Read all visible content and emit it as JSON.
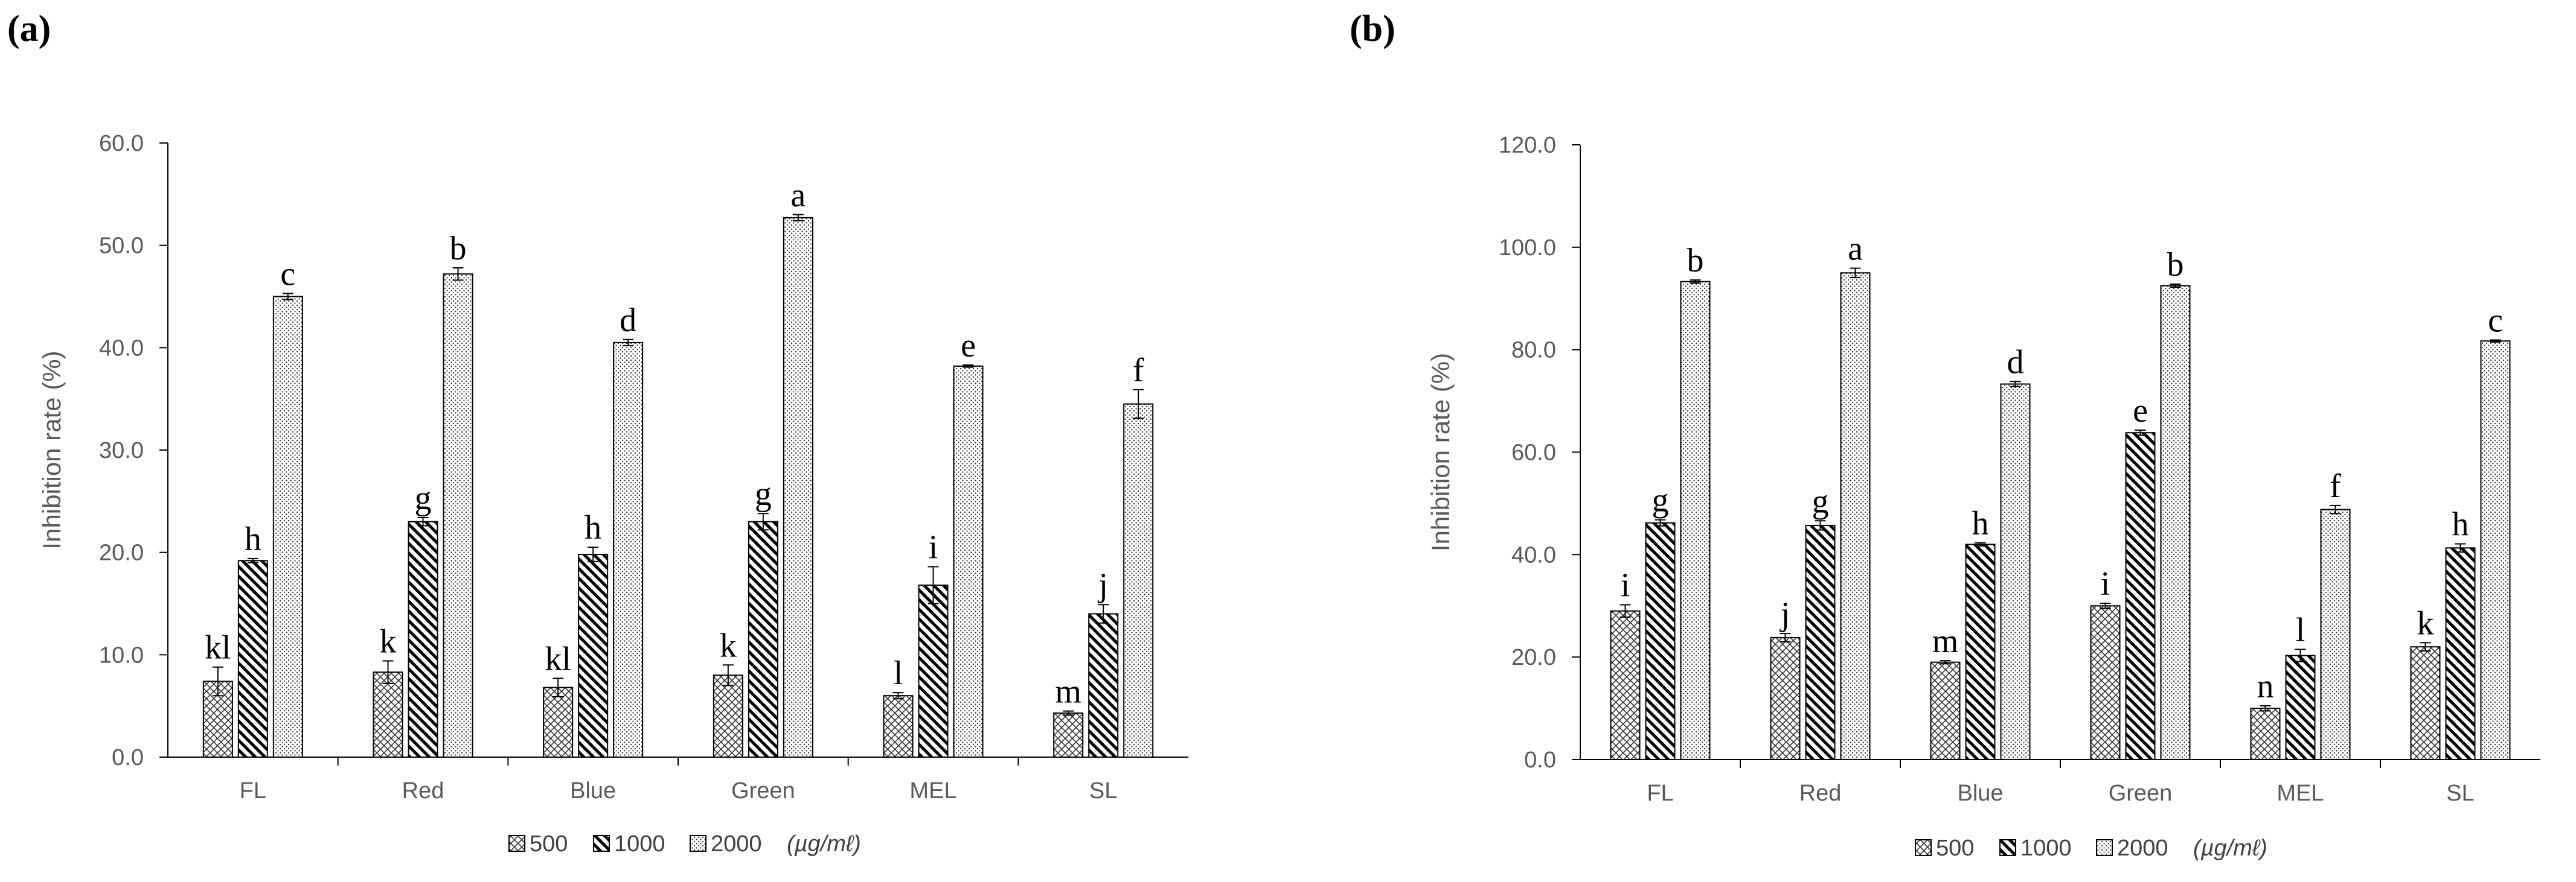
{
  "chart_data": [
    {
      "type": "bar",
      "panel_label": "(a)",
      "title": "",
      "xlabel": "",
      "ylabel": "Inhibition rate (%)",
      "ylim": [
        0,
        60
      ],
      "yticks": [
        "0.0",
        "10.0",
        "20.0",
        "30.0",
        "40.0",
        "50.0",
        "60.0"
      ],
      "categories": [
        "FL",
        "Red",
        "Blue",
        "Green",
        "MEL",
        "SL"
      ],
      "series": [
        {
          "name": "500",
          "pattern": "crosshatch",
          "values": [
            7.4,
            8.3,
            6.8,
            8.0,
            6.0,
            4.3
          ],
          "errors": [
            1.4,
            1.1,
            0.9,
            1.0,
            0.3,
            0.2
          ],
          "letters": [
            "kl",
            "k",
            "kl",
            "k",
            "l",
            "m"
          ]
        },
        {
          "name": "1000",
          "pattern": "diagonal",
          "values": [
            19.2,
            23.0,
            19.8,
            23.0,
            16.8,
            14.0
          ],
          "errors": [
            0.2,
            0.4,
            0.7,
            0.8,
            1.8,
            0.9
          ],
          "letters": [
            "h",
            "g",
            "h",
            "g",
            "i",
            "j"
          ]
        },
        {
          "name": "2000",
          "pattern": "dots",
          "values": [
            45.0,
            47.2,
            40.5,
            52.7,
            38.2,
            34.5
          ],
          "errors": [
            0.3,
            0.6,
            0.3,
            0.3,
            0.1,
            1.4
          ],
          "letters": [
            "c",
            "b",
            "d",
            "a",
            "e",
            "f"
          ]
        }
      ],
      "legend_unit": "(µg/mℓ)",
      "legend_position": "bottom-center",
      "grid": false
    },
    {
      "type": "bar",
      "panel_label": "(b)",
      "title": "",
      "xlabel": "",
      "ylabel": "Inhibition rate (%)",
      "ylim": [
        0,
        120
      ],
      "yticks": [
        "0.0",
        "20.0",
        "40.0",
        "60.0",
        "80.0",
        "100.0",
        "120.0"
      ],
      "categories": [
        "FL",
        "Red",
        "Blue",
        "Green",
        "MEL",
        "SL"
      ],
      "series": [
        {
          "name": "500",
          "pattern": "crosshatch",
          "values": [
            29.0,
            23.8,
            19.0,
            30.0,
            10.0,
            22.0
          ],
          "errors": [
            1.2,
            0.8,
            0.3,
            0.5,
            0.5,
            0.8
          ],
          "letters": [
            "i",
            "j",
            "m",
            "i",
            "n",
            "k"
          ]
        },
        {
          "name": "1000",
          "pattern": "diagonal",
          "values": [
            46.2,
            45.7,
            42.0,
            63.8,
            20.3,
            41.3
          ],
          "errors": [
            0.6,
            0.9,
            0.3,
            0.5,
            1.2,
            0.8
          ],
          "letters": [
            "g",
            "g",
            "h",
            "e",
            "l",
            "h"
          ]
        },
        {
          "name": "2000",
          "pattern": "dots",
          "values": [
            93.3,
            95.0,
            73.3,
            92.5,
            48.8,
            81.7
          ],
          "errors": [
            0.3,
            0.9,
            0.5,
            0.3,
            0.8,
            0.2
          ],
          "letters": [
            "b",
            "a",
            "d",
            "b",
            "f",
            "c"
          ]
        }
      ],
      "legend_unit": "(µg/mℓ)",
      "legend_position": "bottom-center",
      "grid": false
    }
  ]
}
